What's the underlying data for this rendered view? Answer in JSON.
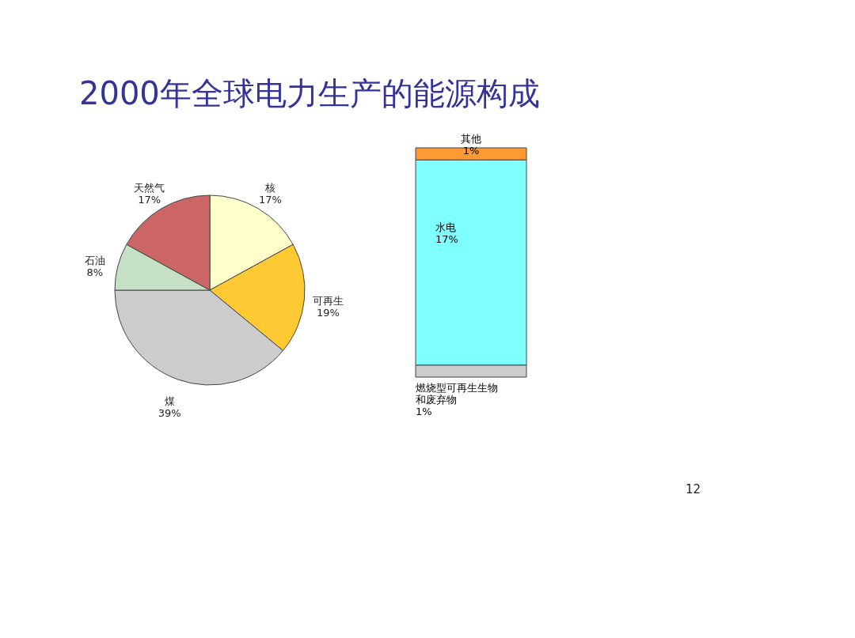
{
  "chart_data": [
    {
      "type": "pie",
      "title": "2000年全球电力生产的能源构成",
      "categories": [
        "核",
        "可再生",
        "煤",
        "石油",
        "天然气"
      ],
      "values": [
        17,
        19,
        39,
        8,
        17
      ],
      "value_labels": [
        "17%",
        "19%",
        "39%",
        "8%",
        "17%"
      ],
      "colors": [
        "#ffffcc",
        "#ffc933",
        "#cccccc",
        "#c6e0c6",
        "#cc6666"
      ],
      "legend": false
    },
    {
      "type": "bar",
      "stacked": true,
      "categories": [
        null
      ],
      "legend": false,
      "series": [
        {
          "name": "燃烧型可再生生物和废弃物",
          "color": "#cccccc",
          "values": [
            1
          ],
          "value_labels": [
            "1%"
          ]
        },
        {
          "name": "水电",
          "color": "#80ffff",
          "values": [
            17
          ],
          "value_labels": [
            "17%"
          ]
        },
        {
          "name": "其他",
          "color": "#ff9933",
          "values": [
            1
          ],
          "value_labels": [
            "1%"
          ]
        }
      ],
      "annotations": [
        "12"
      ]
    }
  ]
}
